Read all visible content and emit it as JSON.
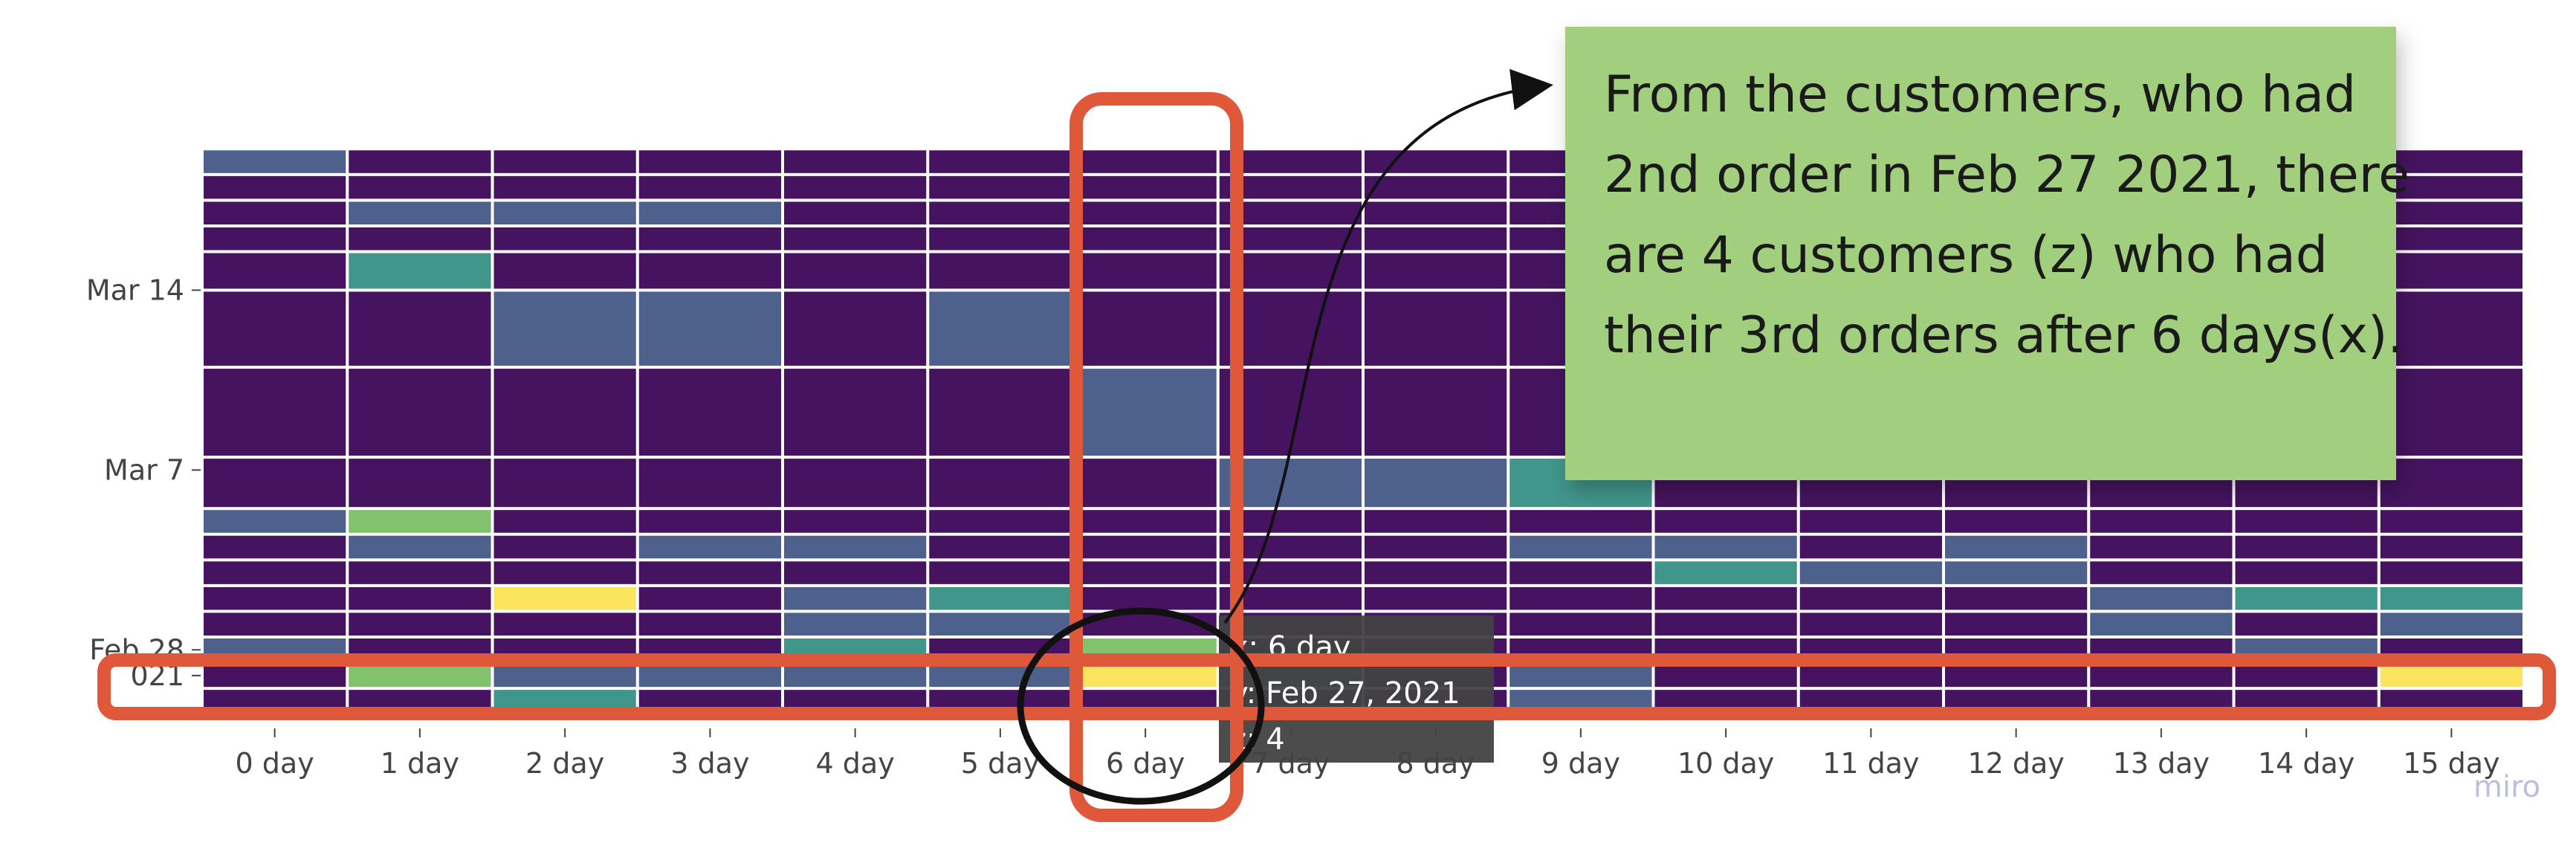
{
  "chart_data": {
    "type": "heatmap",
    "x_categories": [
      "0 day",
      "1 day",
      "2 day",
      "3 day",
      "4 day",
      "5 day",
      "6 day",
      "7 day",
      "8 day",
      "9 day",
      "10 day",
      "11 day",
      "12 day",
      "13 day",
      "14 day",
      "15 day"
    ],
    "y_ticks": [
      {
        "label": "Mar 14",
        "date": "2021-03-14"
      },
      {
        "label": "Mar 7",
        "date": "2021-03-07"
      },
      {
        "label": "Feb 28",
        "date": "2021-02-28"
      },
      {
        "label": "021",
        "date": "2021-02-27"
      }
    ],
    "rows": [
      {
        "date": "2021-02-26",
        "z": [
          0,
          0,
          2,
          0,
          0,
          0,
          0,
          0,
          0,
          1,
          0,
          0,
          0,
          0,
          0,
          0
        ]
      },
      {
        "date": "2021-02-27",
        "z": [
          0,
          3,
          1,
          1,
          1,
          1,
          4,
          1,
          0,
          1,
          0,
          0,
          0,
          0,
          0,
          4
        ]
      },
      {
        "date": "2021-02-28",
        "z": [
          1,
          0,
          0,
          0,
          2,
          0,
          3,
          0,
          0,
          0,
          0,
          0,
          0,
          0,
          1,
          0
        ]
      },
      {
        "date": "2021-03-01",
        "z": [
          0,
          0,
          0,
          0,
          1,
          1,
          0,
          0,
          0,
          0,
          0,
          0,
          0,
          1,
          0,
          1
        ]
      },
      {
        "date": "2021-03-02",
        "z": [
          0,
          0,
          4,
          0,
          1,
          2,
          0,
          0,
          0,
          0,
          0,
          0,
          0,
          1,
          2,
          2
        ]
      },
      {
        "date": "2021-03-03",
        "z": [
          0,
          0,
          0,
          0,
          0,
          0,
          0,
          0,
          0,
          0,
          2,
          1,
          1,
          0,
          0,
          0
        ]
      },
      {
        "date": "2021-03-04",
        "z": [
          0,
          1,
          0,
          1,
          1,
          0,
          0,
          0,
          0,
          1,
          1,
          0,
          1,
          0,
          0,
          0
        ]
      },
      {
        "date": "2021-03-05",
        "z": [
          1,
          3,
          0,
          0,
          0,
          0,
          0,
          0,
          0,
          0,
          0,
          0,
          0,
          0,
          0,
          0
        ]
      },
      {
        "date": "2021-03-06",
        "z": [
          0,
          0,
          0,
          0,
          0,
          0,
          0,
          1,
          1,
          2,
          0,
          0,
          0,
          0,
          0,
          0
        ]
      },
      {
        "date": "2021-03-09",
        "z": [
          0,
          0,
          0,
          0,
          0,
          0,
          1,
          0,
          0,
          0,
          0,
          0,
          0,
          0,
          0,
          0
        ]
      },
      {
        "date": "2021-03-13",
        "z": [
          0,
          0,
          1,
          1,
          0,
          1,
          0,
          0,
          0,
          0,
          0,
          0,
          0,
          0,
          0,
          0
        ]
      },
      {
        "date": "2021-03-15",
        "z": [
          0,
          2,
          0,
          0,
          0,
          0,
          0,
          0,
          0,
          0,
          0,
          0,
          0,
          0,
          0,
          0
        ]
      },
      {
        "date": "2021-03-16",
        "z": [
          0,
          0,
          0,
          0,
          0,
          0,
          0,
          0,
          0,
          0,
          0,
          0,
          0,
          0,
          0,
          0
        ]
      },
      {
        "date": "2021-03-17",
        "z": [
          0,
          1,
          1,
          1,
          0,
          0,
          0,
          0,
          0,
          0,
          0,
          0,
          0,
          0,
          0,
          0
        ]
      },
      {
        "date": "2021-03-18",
        "z": [
          0,
          0,
          0,
          0,
          0,
          0,
          0,
          0,
          0,
          0,
          0,
          0,
          0,
          0,
          0,
          0
        ]
      },
      {
        "date": "2021-03-19",
        "z": [
          1,
          0,
          0,
          0,
          0,
          0,
          0,
          0,
          0,
          0,
          0,
          0,
          0,
          0,
          0,
          0
        ]
      }
    ],
    "colorscale": [
      "#45135f",
      "#4e618d",
      "#41968c",
      "#82c26d",
      "#fbe55e"
    ],
    "z_range": [
      0,
      4
    ],
    "grid": false,
    "hover": {
      "x_line": "x: 6 day",
      "y_line": "y: Feb 27, 2021",
      "z_line": "z: 4"
    }
  },
  "annotation": {
    "lines": [
      "From the customers, who had",
      "2nd order in Feb 27 2021, there",
      "are 4 customers (z) who had",
      "their 3rd orders after 6 days(x)."
    ],
    "note_color": "#a1cf7e",
    "highlight_color": "#e0583a",
    "circle_color": "#111111"
  },
  "watermark": "miro"
}
